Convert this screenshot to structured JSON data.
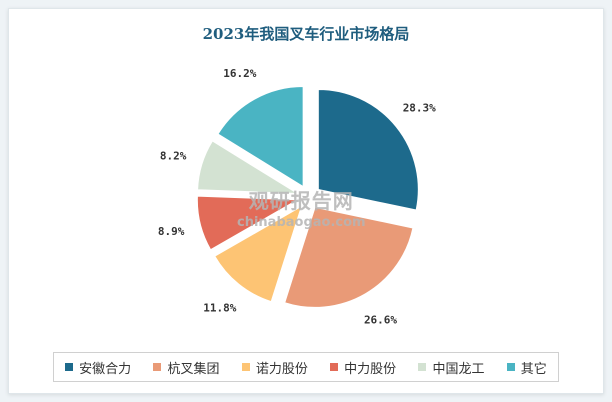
{
  "chart_data": {
    "type": "pie",
    "title": "2023年我国叉车行业市场格局",
    "exploded": true,
    "legend_position": "bottom",
    "slices": [
      {
        "name": "安徽合力",
        "value": 28.3,
        "label": "28.3%",
        "color": "#1d6a8c"
      },
      {
        "name": "杭叉集团",
        "value": 26.6,
        "label": "26.6%",
        "color": "#e99a77"
      },
      {
        "name": "诺力股份",
        "value": 11.8,
        "label": "11.8%",
        "color": "#fdc474"
      },
      {
        "name": "中力股份",
        "value": 8.9,
        "label": "8.9%",
        "color": "#e26b58"
      },
      {
        "name": "中国龙工",
        "value": 8.2,
        "label": "8.2%",
        "color": "#d3e2d2"
      },
      {
        "name": "其它",
        "value": 16.2,
        "label": "16.2%",
        "color": "#4ab4c3"
      }
    ]
  },
  "watermark": {
    "cn": "观研报告网",
    "en": "chinabaogao.com"
  }
}
